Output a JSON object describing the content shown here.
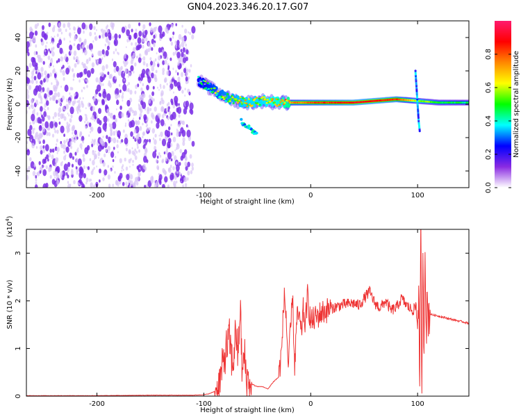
{
  "title": "GN04.2023.346.20.17.G07",
  "colors": {
    "snr_line": "#ee3333",
    "axis": "#000000",
    "spectrum_noise": "#7a2ee6",
    "spectrum_faint": "#d9c4f7"
  },
  "chart_data": [
    {
      "type": "heatmap",
      "title": "GN04.2023.346.20.17.G07",
      "xlabel": "Height of straight line (km)",
      "ylabel": "Frequency (Hz)",
      "xlim": [
        -266,
        148
      ],
      "ylim": [
        -50,
        50
      ],
      "xticks": [
        -200,
        -100,
        0,
        100
      ],
      "xtick_labels": [
        "-200",
        "-100",
        "0",
        "100"
      ],
      "yticks": [
        -40,
        -20,
        0,
        20,
        40
      ],
      "ytick_labels": [
        "-40",
        "-20",
        "0",
        "20",
        "40"
      ],
      "colorbar": {
        "label": "Normalized spectral amplitude",
        "range": [
          0,
          1
        ],
        "ticks": [
          0.0,
          0.2,
          0.4,
          0.6,
          0.8
        ],
        "tick_labels": [
          "0.0",
          "0.2",
          "0.4",
          "0.6",
          "0.8"
        ],
        "colormap": [
          "#ffffff",
          "#8a2be2",
          "#0000ff",
          "#00ffff",
          "#00ff00",
          "#ffff00",
          "#ff8800",
          "#ff0000",
          "#ff1a6e"
        ]
      },
      "features": [
        {
          "name": "noise region",
          "x_range": [
            -266,
            -108
          ],
          "y_range": [
            -50,
            48
          ],
          "amplitude": 0.1
        },
        {
          "name": "signal track",
          "points": [
            [
              -105,
              14
            ],
            [
              -95,
              10
            ],
            [
              -85,
              6
            ],
            [
              -75,
              3
            ],
            [
              -60,
              1
            ],
            [
              -45,
              2
            ],
            [
              -30,
              1
            ],
            [
              -15,
              1
            ],
            [
              0,
              1
            ],
            [
              20,
              1
            ],
            [
              40,
              1
            ],
            [
              60,
              2
            ],
            [
              80,
              3
            ],
            [
              100,
              2
            ],
            [
              120,
              1
            ],
            [
              148,
              1
            ]
          ],
          "amplitude": [
            0.4,
            0.45,
            0.5,
            0.55,
            0.6,
            0.6,
            0.65,
            0.75,
            0.8,
            0.85,
            0.9,
            0.9,
            0.85,
            0.6,
            0.5,
            0.45
          ]
        },
        {
          "name": "secondary track",
          "points": [
            [
              -65,
              -10
            ],
            [
              -58,
              -14
            ],
            [
              -50,
              -18
            ]
          ],
          "amplitude": 0.4
        },
        {
          "name": "spike near 100 km",
          "points": [
            [
              98,
              20
            ],
            [
              99,
              10
            ],
            [
              100,
              0
            ],
            [
              101,
              -10
            ],
            [
              102,
              -16
            ]
          ],
          "amplitude": 0.35
        }
      ]
    },
    {
      "type": "line",
      "xlabel": "Height of straight line (km)",
      "ylabel": "SNR (10 * v/v)",
      "multiplier": "(x10",
      "multiplier_exp": "4",
      "multiplier_close": ")",
      "xlim": [
        -266,
        148
      ],
      "ylim": [
        0,
        3.5
      ],
      "xticks": [
        -200,
        -100,
        0,
        100
      ],
      "xtick_labels": [
        "-200",
        "-100",
        "0",
        "100"
      ],
      "yticks": [
        0,
        1,
        2,
        3
      ],
      "ytick_labels": [
        "0",
        "1",
        "2",
        "3"
      ],
      "series": [
        {
          "color": "#ee3333",
          "x": [
            -266,
            -200,
            -150,
            -110,
            -100,
            -95,
            -90,
            -85,
            -80,
            -76,
            -73,
            -70,
            -68,
            -66,
            -64,
            -62,
            -60,
            -58,
            -56,
            -55,
            -50,
            -45,
            -40,
            -35,
            -30,
            -27,
            -25,
            -23,
            -21,
            -19,
            -17,
            -15,
            -13,
            -11,
            -9,
            -7,
            -5,
            -3,
            0,
            10,
            20,
            30,
            40,
            45,
            50,
            55,
            60,
            65,
            70,
            75,
            80,
            85,
            90,
            95,
            98,
            100,
            101,
            102,
            103,
            104,
            105,
            106,
            107,
            108,
            109,
            110,
            112,
            115,
            120,
            130,
            140,
            148
          ],
          "y": [
            0.01,
            0.01,
            0.02,
            0.02,
            0.03,
            0.05,
            0.1,
            0.3,
            0.9,
            1.2,
            0.6,
            1.4,
            0.8,
            1.9,
            0.4,
            0.9,
            0.3,
            0.4,
            0.1,
            0.25,
            0.2,
            0.2,
            0.15,
            0.3,
            0.4,
            1.0,
            2.1,
            1.7,
            0.6,
            1.3,
            2.1,
            0.6,
            1.6,
            1.7,
            1.3,
            1.8,
            1.5,
            2.1,
            1.55,
            1.75,
            1.85,
            1.92,
            1.95,
            1.9,
            2.05,
            2.2,
            1.95,
            1.85,
            2.0,
            1.8,
            1.85,
            2.05,
            1.9,
            1.8,
            1.85,
            1.6,
            2.3,
            0.2,
            3.35,
            0.15,
            2.6,
            1.0,
            3.4,
            1.4,
            1.9,
            1.72,
            1.72,
            1.7,
            1.68,
            1.62,
            1.57,
            1.53
          ]
        }
      ]
    }
  ]
}
